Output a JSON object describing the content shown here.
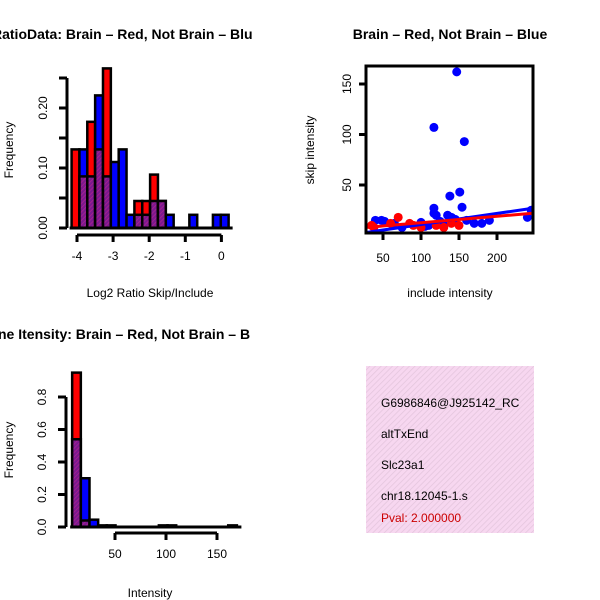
{
  "colors": {
    "red": "#ff0000",
    "blue": "#0000ff",
    "overlap": "#8b1a8b",
    "panel_bg": "#f5d6ef",
    "pval": "#cc0000"
  },
  "chart_data": [
    {
      "type": "bar",
      "title": "RatioData: Brain – Red, Not Brain – Blu",
      "xlabel": "Log2 Ratio Skip/Include",
      "ylabel": "Frequency",
      "xticks": [
        "-4",
        "-3",
        "-2",
        "-1",
        "0"
      ],
      "xtick_values": [
        -4,
        -3,
        -2,
        -1,
        0
      ],
      "yticks": [
        "0.00",
        "0.10",
        "0.20"
      ],
      "ytick_values": [
        0,
        0.1,
        0.2
      ],
      "xlim": [
        -4.15,
        0.2
      ],
      "ylim": [
        0,
        0.27
      ],
      "bin_start": -4.15,
      "bin_width": 0.2175,
      "series": [
        {
          "name": "Brain",
          "color": "red",
          "values": [
            0.131,
            0.086,
            0.177,
            0.131,
            0.266,
            0,
            0,
            0,
            0.045,
            0.045,
            0.089,
            0.045,
            0,
            0,
            0,
            0,
            0,
            0,
            0,
            0
          ]
        },
        {
          "name": "Not Brain",
          "color": "blue",
          "values": [
            0,
            0.131,
            0.086,
            0.221,
            0.086,
            0.11,
            0.131,
            0.022,
            0.022,
            0.022,
            0.045,
            0.045,
            0.022,
            0,
            0,
            0.022,
            0,
            0,
            0.022,
            0.022
          ]
        }
      ]
    },
    {
      "type": "scatter",
      "title": "Brain – Red, Not Brain – Blue",
      "xlabel": "include intensity",
      "ylabel": "skip intensity",
      "xticks": [
        "50",
        "100",
        "150",
        "200"
      ],
      "xtick_values": [
        50,
        100,
        150,
        200
      ],
      "yticks": [
        "50",
        "100",
        "150"
      ],
      "ytick_values": [
        50,
        100,
        150
      ],
      "xlim": [
        28,
        247
      ],
      "ylim": [
        2.5,
        168
      ],
      "series": [
        {
          "name": "Not Brain",
          "color": "blue",
          "points": [
            [
              147,
              162
            ],
            [
              117,
              107
            ],
            [
              157,
              93
            ],
            [
              138,
              39
            ],
            [
              151,
              43
            ],
            [
              154,
              28
            ],
            [
              117,
              27
            ],
            [
              117,
              22
            ],
            [
              240,
              18
            ],
            [
              40,
              15
            ],
            [
              48,
              15
            ],
            [
              52,
              14
            ],
            [
              65,
              12
            ],
            [
              100,
              13
            ],
            [
              120,
              20
            ],
            [
              135,
              20
            ],
            [
              140,
              18
            ],
            [
              145,
              16
            ],
            [
              170,
              12
            ],
            [
              180,
              12
            ],
            [
              190,
              15
            ],
            [
              245,
              25
            ],
            [
              110,
              10
            ],
            [
              125,
              14
            ],
            [
              160,
              15
            ],
            [
              130,
              10
            ],
            [
              105,
              9
            ],
            [
              75,
              8
            ]
          ],
          "fit": [
            [
              28,
              3
            ],
            [
              247,
              27
            ]
          ]
        },
        {
          "name": "Brain",
          "color": "red",
          "points": [
            [
              70,
              18
            ],
            [
              35,
              10
            ],
            [
              60,
              12
            ],
            [
              90,
              10
            ],
            [
              130,
              8
            ],
            [
              140,
              12
            ],
            [
              100,
              8
            ],
            [
              150,
              10
            ],
            [
              120,
              10
            ],
            [
              38,
              8
            ],
            [
              85,
              12
            ]
          ],
          "fit": [
            [
              28,
              8
            ],
            [
              247,
              22
            ]
          ]
        }
      ]
    },
    {
      "type": "bar",
      "title": "ne Itensity: Brain – Red, Not Brain – B",
      "xlabel": "Intensity",
      "ylabel": "Frequency",
      "xticks": [
        "50",
        "100",
        "150"
      ],
      "xtick_values": [
        50,
        100,
        150
      ],
      "yticks": [
        "0.0",
        "0.2",
        "0.4",
        "0.6",
        "0.8"
      ],
      "ytick_values": [
        0,
        0.2,
        0.4,
        0.6,
        0.8
      ],
      "xlim": [
        8,
        170
      ],
      "ylim": [
        0,
        0.96
      ],
      "bin_start": 8,
      "bin_width": 8.5,
      "series": [
        {
          "name": "Brain",
          "color": "red",
          "values": [
            0.95,
            0.04,
            0,
            0,
            0,
            0,
            0,
            0,
            0,
            0,
            0,
            0,
            0,
            0,
            0,
            0,
            0,
            0,
            0
          ]
        },
        {
          "name": "Not Brain",
          "color": "blue",
          "values": [
            0.54,
            0.3,
            0.045,
            0.01,
            0.01,
            0,
            0,
            0,
            0,
            0,
            0.01,
            0.01,
            0,
            0,
            0,
            0,
            0,
            0,
            0.01
          ]
        }
      ]
    }
  ],
  "info": {
    "id": "G6986846@J925142_RC",
    "type": "altTxEnd",
    "gene": "Slc23a1",
    "locus": "chr18.12045-1.s",
    "pval": "Pval: 2.000000"
  }
}
